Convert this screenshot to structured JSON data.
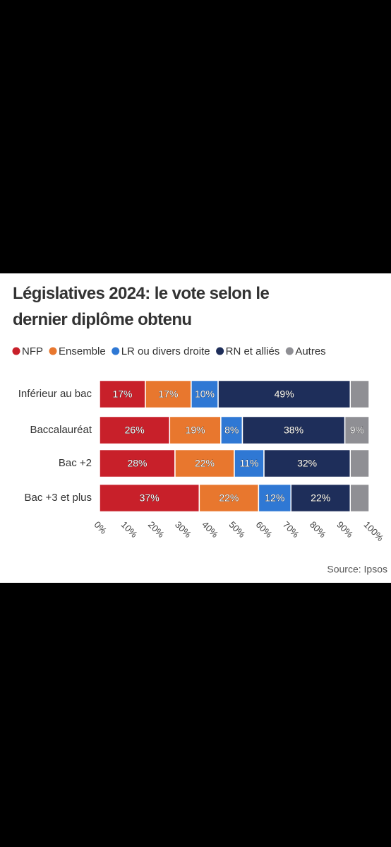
{
  "chart_data": {
    "type": "stacked-bar-horizontal",
    "title": "Législatives 2024: le vote selon le dernier diplôme obtenu",
    "source": "Source: Ipsos",
    "categories": [
      "Inférieur au bac",
      "Baccalauréat",
      "Bac +2",
      "Bac +3 et plus"
    ],
    "series": [
      {
        "name": "NFP",
        "color": "#c8202a",
        "values": [
          17,
          26,
          28,
          37
        ],
        "value_labels": [
          "17%",
          "26%",
          "28%",
          "37%"
        ]
      },
      {
        "name": "Ensemble",
        "color": "#e8772e",
        "values": [
          17,
          19,
          22,
          22
        ],
        "value_labels": [
          "17%",
          "19%",
          "22%",
          "22%"
        ]
      },
      {
        "name": "LR ou divers droite",
        "color": "#2f78d4",
        "values": [
          10,
          8,
          11,
          12
        ],
        "value_labels": [
          "10%",
          "8%",
          "11%",
          "12%"
        ]
      },
      {
        "name": "RN et alliés",
        "color": "#1e2e5a",
        "values": [
          49,
          38,
          32,
          22
        ],
        "value_labels": [
          "49%",
          "38%",
          "32%",
          "22%"
        ]
      },
      {
        "name": "Autres",
        "color": "#8f8f94",
        "values": [
          7,
          9,
          7,
          7
        ],
        "value_labels": [
          null,
          "9%",
          null,
          null
        ]
      }
    ],
    "xlim": [
      0,
      100
    ],
    "xticks": [
      {
        "value": 0,
        "label": "0%"
      },
      {
        "value": 10,
        "label": "10%"
      },
      {
        "value": 20,
        "label": "20%"
      },
      {
        "value": 30,
        "label": "30%"
      },
      {
        "value": 40,
        "label": "40%"
      },
      {
        "value": 50,
        "label": "50%"
      },
      {
        "value": 60,
        "label": "60%"
      },
      {
        "value": 70,
        "label": "70%"
      },
      {
        "value": 80,
        "label": "80%"
      },
      {
        "value": 90,
        "label": "90%"
      },
      {
        "value": 100,
        "label": "100%"
      }
    ]
  }
}
